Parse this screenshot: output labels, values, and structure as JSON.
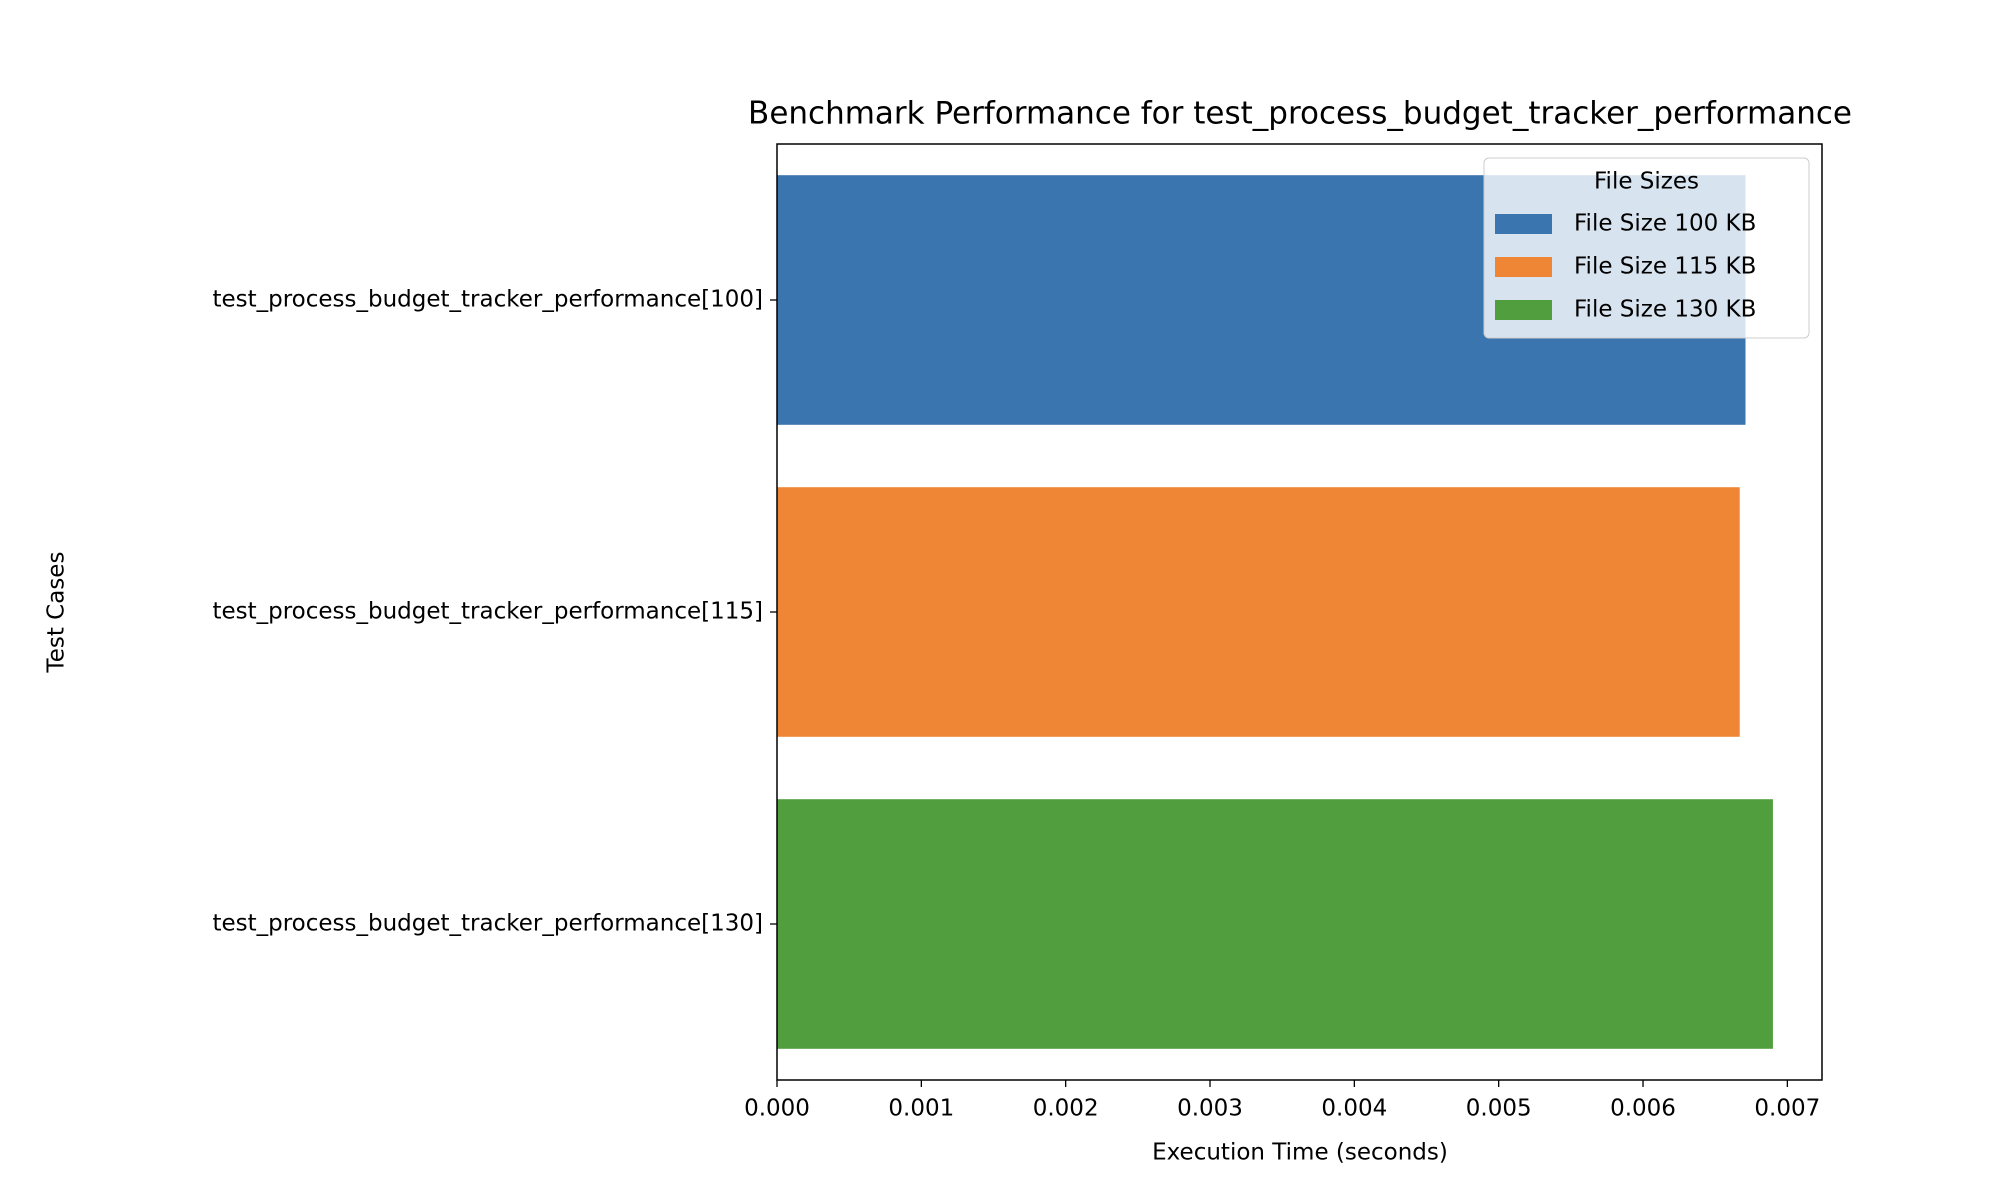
{
  "chart_data": {
    "type": "bar",
    "orientation": "horizontal",
    "title": "Benchmark Performance for test_process_budget_tracker_performance",
    "x_label": "Execution Time (seconds)",
    "y_label": "Test Cases",
    "categories": [
      "test_process_budget_tracker_performance[100]",
      "test_process_budget_tracker_performance[115]",
      "test_process_budget_tracker_performance[130]"
    ],
    "series": [
      {
        "name": "File Size 100 KB",
        "color": "#3a75af",
        "values": [
          0.00671,
          null,
          null
        ]
      },
      {
        "name": "File Size 115 KB",
        "color": "#ef8636",
        "values": [
          null,
          0.00667,
          null
        ]
      },
      {
        "name": "File Size 130 KB",
        "color": "#519e3e",
        "values": [
          null,
          null,
          0.0069
        ]
      }
    ],
    "xlim": [
      0,
      0.00724
    ],
    "xticks": [
      {
        "value": 0,
        "label": "0.000"
      },
      {
        "value": 0.001,
        "label": "0.001"
      },
      {
        "value": 0.002,
        "label": "0.002"
      },
      {
        "value": 0.003,
        "label": "0.003"
      },
      {
        "value": 0.004,
        "label": "0.004"
      },
      {
        "value": 0.005,
        "label": "0.005"
      },
      {
        "value": 0.006,
        "label": "0.006"
      },
      {
        "value": 0.007,
        "label": "0.007"
      }
    ],
    "legend": {
      "title": "File Sizes",
      "position": "upper-right"
    }
  }
}
